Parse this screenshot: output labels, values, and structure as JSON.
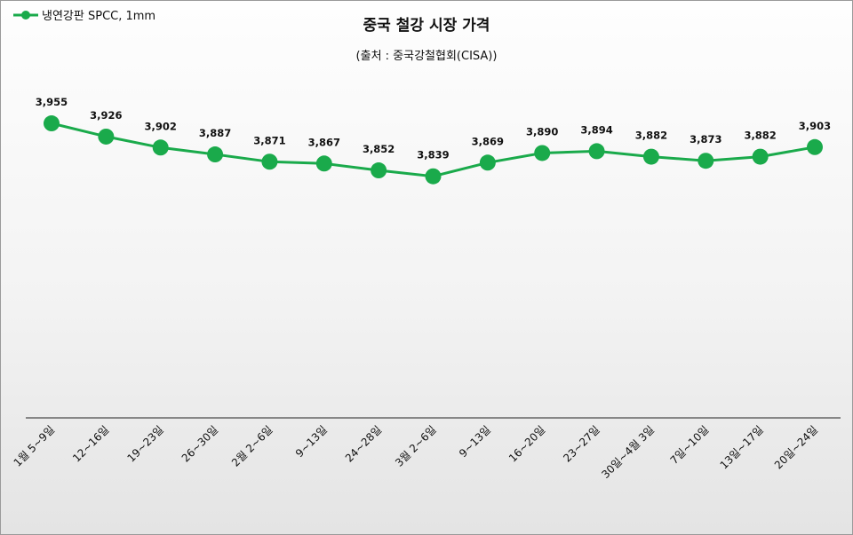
{
  "chart_data": {
    "type": "line",
    "title": "중국 철강 시장 가격",
    "subtitle": "(출처 : 중국강철협회(CISA))",
    "xlabel": "",
    "ylabel": "",
    "legend_position": "top-left",
    "grid": false,
    "ylim": [
      3310,
      3990
    ],
    "categories": [
      "1월 5~9일",
      "12~16일",
      "19~23일",
      "26~30일",
      "2월 2~6일",
      "9~13일",
      "24~28일",
      "3월 2~6일",
      "9~13일",
      "16~20일",
      "23~27일",
      "30일~4월 3일",
      "7일~10일",
      "13일~17일",
      "20일~24일"
    ],
    "series": [
      {
        "name": "냉연강판 SPCC, 1mm",
        "color": "#1aaa4b",
        "values": [
          3955,
          3926,
          3902,
          3887,
          3871,
          3867,
          3852,
          3839,
          3869,
          3890,
          3894,
          3882,
          3873,
          3882,
          3903
        ],
        "value_labels": [
          "3,955",
          "3,926",
          "3,902",
          "3,887",
          "3,871",
          "3,867",
          "3,852",
          "3,839",
          "3,869",
          "3,890",
          "3,894",
          "3,882",
          "3,873",
          "3,882",
          "3,903"
        ]
      }
    ]
  }
}
